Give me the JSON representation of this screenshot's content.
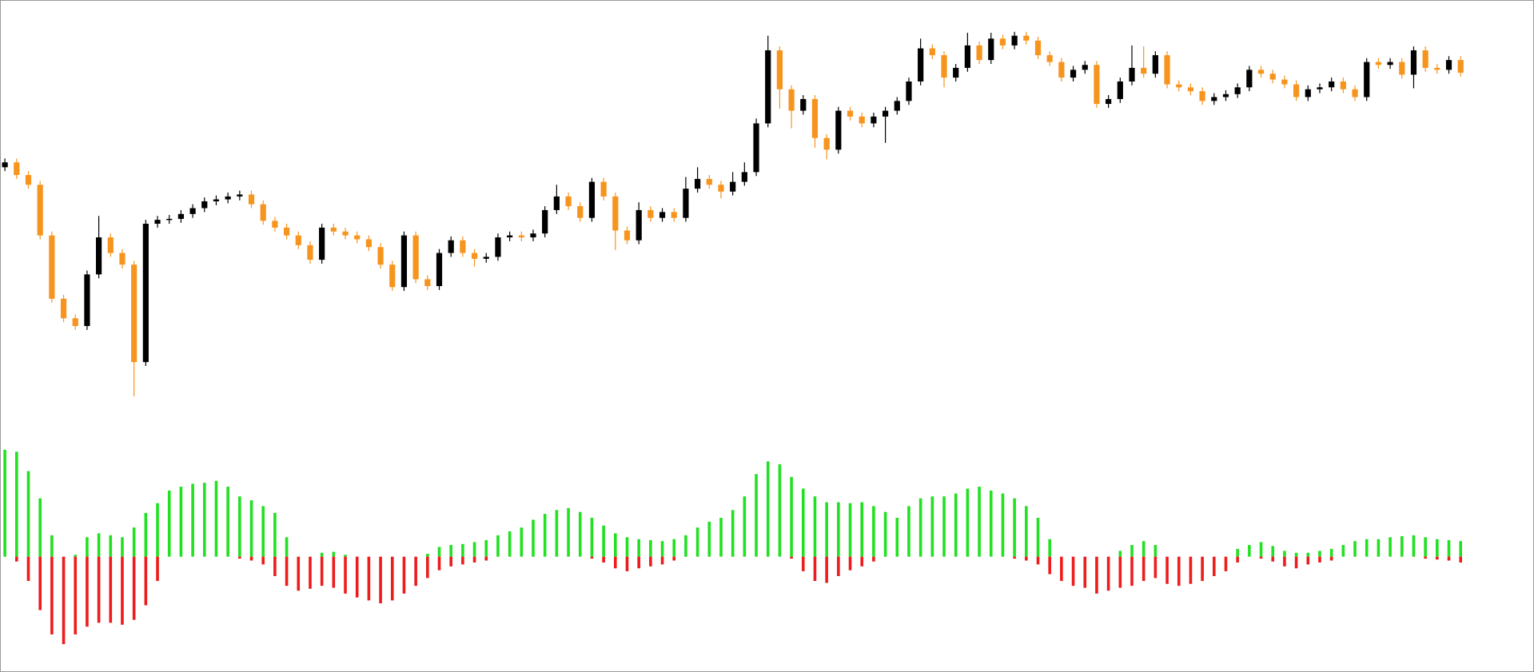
{
  "chart_data": [
    {
      "type": "candlestick",
      "up_color": "#000000",
      "down_color": "#f7941d",
      "ylim": [
        -20,
        420
      ],
      "open": [
        250,
        255,
        242,
        232,
        180,
        115,
        95,
        87,
        140,
        178,
        162,
        150,
        50,
        192,
        196,
        197,
        202,
        208,
        215,
        217,
        220,
        222,
        212,
        195,
        188,
        180,
        170,
        155,
        188,
        184,
        180,
        176,
        168,
        150,
        127,
        180,
        135,
        128,
        162,
        175,
        162,
        156,
        158,
        178,
        180,
        178,
        182,
        206,
        220,
        210,
        198,
        235,
        220,
        185,
        175,
        206,
        198,
        204,
        198,
        228,
        238,
        232,
        225,
        235,
        245,
        295,
        370,
        330,
        308,
        320,
        280,
        268,
        308,
        302,
        295,
        302,
        308,
        318,
        338,
        372,
        365,
        342,
        352,
        375,
        360,
        382,
        375,
        385,
        380,
        365,
        358,
        342,
        350,
        355,
        315,
        320,
        338,
        352,
        346,
        365,
        335,
        332,
        328,
        318,
        322,
        325,
        332,
        350,
        346,
        340,
        335,
        322,
        330,
        332,
        338,
        330,
        322,
        358,
        355,
        358,
        345,
        370,
        352,
        350,
        360
      ],
      "high": [
        259,
        259,
        246,
        236,
        184,
        119,
        99,
        144,
        200,
        182,
        166,
        154,
        196,
        200,
        201,
        206,
        212,
        219,
        221,
        224,
        226,
        226,
        216,
        199,
        192,
        184,
        174,
        192,
        192,
        188,
        184,
        180,
        172,
        154,
        184,
        184,
        139,
        166,
        179,
        179,
        166,
        162,
        182,
        184,
        184,
        186,
        210,
        232,
        224,
        214,
        239,
        239,
        224,
        189,
        214,
        210,
        208,
        208,
        240,
        250,
        242,
        236,
        245,
        255,
        300,
        385,
        374,
        334,
        324,
        324,
        284,
        312,
        312,
        306,
        306,
        312,
        322,
        342,
        382,
        376,
        369,
        356,
        388,
        379,
        388,
        386,
        389,
        389,
        384,
        369,
        362,
        354,
        359,
        359,
        324,
        342,
        375,
        374,
        369,
        369,
        339,
        336,
        332,
        326,
        329,
        336,
        354,
        354,
        350,
        344,
        339,
        334,
        336,
        342,
        342,
        334,
        362,
        362,
        362,
        362,
        374,
        374,
        356,
        364,
        364
      ],
      "low": [
        246,
        238,
        228,
        176,
        111,
        91,
        83,
        83,
        136,
        158,
        146,
        15,
        46,
        188,
        192,
        193,
        198,
        204,
        211,
        213,
        216,
        208,
        191,
        184,
        176,
        166,
        151,
        151,
        180,
        176,
        172,
        164,
        146,
        123,
        123,
        131,
        124,
        124,
        158,
        158,
        148,
        152,
        154,
        174,
        174,
        174,
        178,
        202,
        206,
        194,
        194,
        216,
        165,
        171,
        171,
        194,
        194,
        194,
        194,
        224,
        228,
        218,
        221,
        231,
        241,
        291,
        310,
        290,
        304,
        270,
        258,
        264,
        298,
        291,
        291,
        275,
        304,
        314,
        334,
        361,
        332,
        338,
        348,
        356,
        356,
        371,
        371,
        376,
        361,
        354,
        338,
        338,
        346,
        311,
        311,
        316,
        334,
        342,
        342,
        331,
        328,
        324,
        314,
        314,
        318,
        321,
        328,
        342,
        336,
        331,
        318,
        318,
        326,
        328,
        326,
        318,
        318,
        351,
        351,
        341,
        331,
        348,
        346,
        346,
        343
      ],
      "close": [
        255,
        242,
        232,
        180,
        115,
        95,
        87,
        140,
        178,
        162,
        150,
        50,
        192,
        196,
        197,
        202,
        208,
        215,
        217,
        220,
        222,
        212,
        195,
        188,
        180,
        170,
        155,
        188,
        184,
        180,
        176,
        168,
        150,
        127,
        180,
        135,
        128,
        162,
        175,
        162,
        156,
        158,
        178,
        180,
        178,
        182,
        206,
        220,
        210,
        198,
        235,
        220,
        185,
        175,
        206,
        198,
        204,
        198,
        228,
        238,
        232,
        225,
        235,
        245,
        295,
        370,
        330,
        308,
        320,
        280,
        268,
        308,
        302,
        295,
        302,
        308,
        318,
        338,
        372,
        365,
        342,
        352,
        375,
        360,
        382,
        375,
        385,
        380,
        365,
        358,
        342,
        350,
        355,
        315,
        320,
        338,
        352,
        346,
        365,
        335,
        332,
        328,
        318,
        322,
        325,
        332,
        350,
        346,
        340,
        335,
        322,
        330,
        332,
        338,
        330,
        322,
        358,
        355,
        358,
        345,
        370,
        352,
        350,
        360,
        347
      ]
    },
    {
      "type": "histogram_oscillator",
      "ylim": [
        -117,
        130
      ],
      "series": [
        {
          "color": "#22e022",
          "values": [
            110,
            108,
            88,
            60,
            22,
            0,
            2,
            20,
            24,
            22,
            20,
            30,
            45,
            55,
            68,
            72,
            75,
            76,
            78,
            72,
            62,
            58,
            52,
            45,
            20,
            0,
            0,
            4,
            5,
            2,
            0,
            0,
            0,
            0,
            0,
            0,
            3,
            10,
            12,
            13,
            15,
            17,
            22,
            26,
            30,
            38,
            44,
            48,
            50,
            46,
            40,
            32,
            24,
            20,
            18,
            17,
            16,
            18,
            22,
            30,
            36,
            40,
            48,
            62,
            85,
            98,
            95,
            82,
            70,
            62,
            56,
            56,
            55,
            56,
            52,
            46,
            40,
            52,
            60,
            62,
            62,
            65,
            70,
            72,
            68,
            65,
            60,
            52,
            40,
            18,
            0,
            0,
            0,
            0,
            0,
            6,
            12,
            16,
            12,
            0,
            0,
            0,
            0,
            0,
            0,
            8,
            12,
            15,
            11,
            6,
            4,
            4,
            6,
            8,
            12,
            16,
            18,
            18,
            20,
            21,
            22,
            20,
            18,
            17,
            16
          ]
        },
        {
          "color": "#ee1c1c",
          "values": [
            0,
            -5,
            -25,
            -55,
            -80,
            -90,
            -80,
            -72,
            -68,
            -68,
            -70,
            -65,
            -50,
            -25,
            0,
            0,
            0,
            0,
            0,
            0,
            -2,
            -4,
            -8,
            -20,
            -30,
            -35,
            -33,
            -30,
            -32,
            -38,
            -42,
            -45,
            -48,
            -45,
            -38,
            -30,
            -22,
            -14,
            -10,
            -8,
            -6,
            -4,
            0,
            0,
            0,
            0,
            0,
            0,
            0,
            0,
            -2,
            -6,
            -12,
            -15,
            -12,
            -10,
            -8,
            -4,
            0,
            0,
            0,
            0,
            0,
            0,
            0,
            0,
            0,
            -2,
            -15,
            -25,
            -27,
            -20,
            -14,
            -10,
            -5,
            0,
            0,
            0,
            0,
            0,
            0,
            0,
            0,
            0,
            0,
            0,
            -2,
            -4,
            -8,
            -18,
            -25,
            -30,
            -32,
            -38,
            -35,
            -32,
            -30,
            -25,
            -22,
            -28,
            -30,
            -28,
            -25,
            -20,
            -15,
            -6,
            0,
            -2,
            -5,
            -10,
            -12,
            -8,
            -6,
            -4,
            0,
            0,
            0,
            0,
            0,
            0,
            0,
            -2,
            -3,
            -4,
            -6
          ]
        }
      ]
    }
  ]
}
